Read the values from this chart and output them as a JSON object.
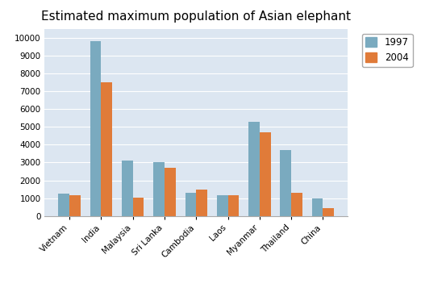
{
  "title": "Estimated maximum population of Asian elephant",
  "categories": [
    "Vietnam",
    "India",
    "Malaysia",
    "Sri Lanka",
    "Cambodia",
    "Laos",
    "Myanmar",
    "Thailand",
    "China"
  ],
  "values_1997": [
    1250,
    9800,
    3100,
    3000,
    1300,
    1150,
    5300,
    3700,
    1000
  ],
  "values_2004": [
    1150,
    7500,
    1050,
    2700,
    1500,
    1150,
    4700,
    1300,
    450
  ],
  "color_1997": "#7aaabf",
  "color_2004": "#e07b39",
  "legend_labels": [
    "1997",
    "2004"
  ],
  "ylim": [
    0,
    10500
  ],
  "yticks": [
    0,
    1000,
    2000,
    3000,
    4000,
    5000,
    6000,
    7000,
    8000,
    9000,
    10000
  ],
  "bar_width": 0.35,
  "plot_bg_color": "#dce6f1",
  "fig_bg_color": "#ffffff",
  "grid_color": "#ffffff",
  "title_fontsize": 11,
  "tick_fontsize": 7.5
}
